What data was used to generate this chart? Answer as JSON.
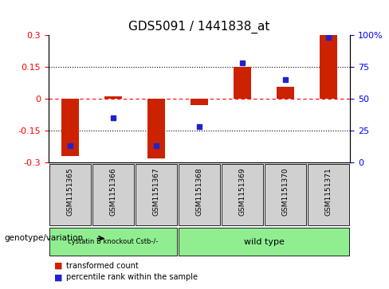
{
  "title": "GDS5091 / 1441838_at",
  "samples": [
    "GSM1151365",
    "GSM1151366",
    "GSM1151367",
    "GSM1151368",
    "GSM1151369",
    "GSM1151370",
    "GSM1151371"
  ],
  "bar_values": [
    -0.27,
    0.01,
    -0.28,
    -0.03,
    0.148,
    0.055,
    0.3
  ],
  "percentile_values": [
    13,
    35,
    13,
    28,
    78,
    65,
    98
  ],
  "group1_samples": [
    0,
    1,
    2
  ],
  "group2_samples": [
    3,
    4,
    5,
    6
  ],
  "group1_label": "cystatin B knockout Cstb-/-",
  "group2_label": "wild type",
  "group1_color": "#90EE90",
  "group2_color": "#90EE90",
  "bar_color": "#CC2200",
  "dot_color": "#2222CC",
  "ylim_left": [
    -0.3,
    0.3
  ],
  "ylim_right": [
    0,
    100
  ],
  "yticks_left": [
    -0.3,
    -0.15,
    0,
    0.15,
    0.3
  ],
  "yticks_right": [
    0,
    25,
    50,
    75,
    100
  ],
  "ytick_right_labels": [
    "0",
    "25",
    "50",
    "75",
    "100%"
  ],
  "hlines": [
    0.15,
    0,
    -0.15
  ],
  "hline_styles": [
    "dotted",
    "dashed_red",
    "dotted"
  ],
  "background_color": "#ffffff",
  "label_transformed": "transformed count",
  "label_percentile": "percentile rank within the sample",
  "genotype_label": "genotype/variation"
}
